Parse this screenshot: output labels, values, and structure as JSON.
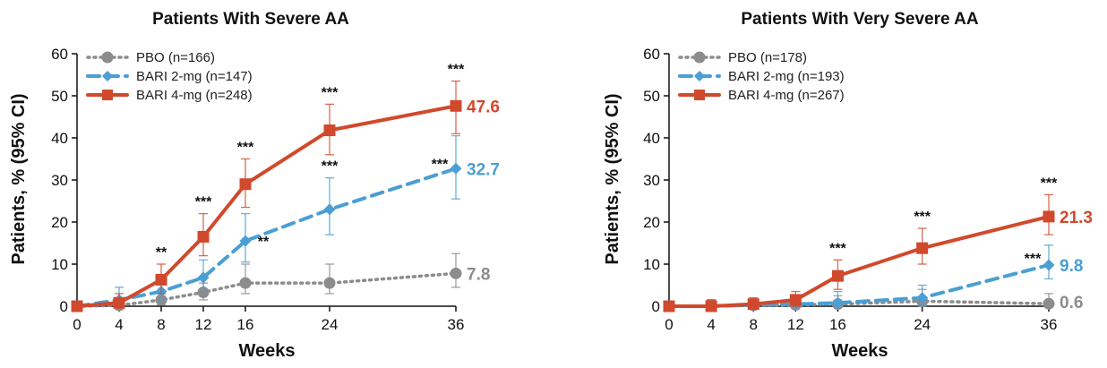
{
  "chart_data": [
    {
      "type": "line",
      "title": "Patients With Severe AA",
      "xlabel": "Weeks",
      "ylabel": "Patients, % (95% CI)",
      "x": [
        0,
        4,
        8,
        12,
        16,
        24,
        36
      ],
      "xticks": [
        "0",
        "4",
        "8",
        "12",
        "16",
        "24",
        "36"
      ],
      "yticks": [
        "0",
        "10",
        "20",
        "30",
        "40",
        "50",
        "60"
      ],
      "ylim": [
        0,
        60
      ],
      "legend_position": "top-left",
      "series": [
        {
          "name": "PBO (n=166)",
          "color": "#8c8c8c",
          "style": "dotted",
          "marker": "circle",
          "values": [
            0,
            0.2,
            1.5,
            3.3,
            5.5,
            5.5,
            7.8
          ],
          "ci_low": [
            0,
            0,
            0.3,
            1.5,
            3.0,
            3.0,
            4.5
          ],
          "ci_high": [
            0,
            1.0,
            3.0,
            5.5,
            10.0,
            10.0,
            12.5
          ],
          "end_label": "7.8"
        },
        {
          "name": "BARI 2-mg (n=147)",
          "color": "#4a9fd4",
          "style": "dashed",
          "marker": "diamond",
          "values": [
            0,
            1.5,
            3.5,
            6.8,
            15.5,
            23.0,
            32.7
          ],
          "ci_low": [
            0,
            0,
            1.5,
            3.5,
            10.5,
            17.0,
            25.5
          ],
          "ci_high": [
            0,
            4.5,
            6.5,
            11.0,
            22.0,
            30.5,
            40.5
          ],
          "end_label": "32.7"
        },
        {
          "name": "BARI 4-mg (n=248)",
          "color": "#d1492c",
          "style": "solid",
          "marker": "square",
          "values": [
            0,
            0.8,
            6.3,
            16.5,
            29.0,
            41.8,
            47.6
          ],
          "ci_low": [
            0,
            0,
            3.0,
            12.0,
            23.5,
            36.0,
            41.0
          ],
          "ci_high": [
            0,
            3.0,
            10.0,
            22.0,
            35.0,
            48.0,
            53.5
          ],
          "end_label": "47.6"
        }
      ],
      "annotations": [
        {
          "x": 8,
          "series": "BARI 4-mg (n=248)",
          "text": "**"
        },
        {
          "x": 12,
          "series": "BARI 4-mg (n=248)",
          "text": "***"
        },
        {
          "x": 16,
          "series": "BARI 4-mg (n=248)",
          "text": "***"
        },
        {
          "x": 16,
          "series": "BARI 2-mg (n=147)",
          "text": "**"
        },
        {
          "x": 24,
          "series": "BARI 4-mg (n=248)",
          "text": "***"
        },
        {
          "x": 24,
          "series": "BARI 2-mg (n=147)",
          "text": "***"
        },
        {
          "x": 36,
          "series": "BARI 4-mg (n=248)",
          "text": "***"
        },
        {
          "x": 36,
          "series": "BARI 2-mg (n=147)",
          "text": "***"
        }
      ]
    },
    {
      "type": "line",
      "title": "Patients With Very Severe AA",
      "xlabel": "Weeks",
      "ylabel": "Patients, % (95% CI)",
      "x": [
        0,
        4,
        8,
        12,
        16,
        24,
        36
      ],
      "xticks": [
        "0",
        "4",
        "8",
        "12",
        "16",
        "24",
        "36"
      ],
      "yticks": [
        "0",
        "10",
        "20",
        "30",
        "40",
        "50",
        "60"
      ],
      "ylim": [
        0,
        60
      ],
      "legend_position": "top-left",
      "series": [
        {
          "name": "PBO (n=178)",
          "color": "#8c8c8c",
          "style": "dotted",
          "marker": "circle",
          "values": [
            0,
            0,
            0.2,
            0.3,
            0.5,
            1.2,
            0.6
          ],
          "ci_low": [
            0,
            0,
            0,
            0,
            0,
            0,
            0
          ],
          "ci_high": [
            0,
            1.5,
            1.5,
            2.5,
            2.5,
            4.0,
            3.0
          ],
          "end_label": "0.6"
        },
        {
          "name": "BARI 2-mg (n=193)",
          "color": "#4a9fd4",
          "style": "dashed",
          "marker": "diamond",
          "values": [
            0,
            0,
            0.3,
            0.5,
            0.8,
            2.0,
            9.8
          ],
          "ci_low": [
            0,
            0,
            0,
            0,
            0,
            0.5,
            6.5
          ],
          "ci_high": [
            0,
            1.5,
            1.5,
            2.5,
            3.5,
            5.0,
            14.5
          ],
          "end_label": "9.8"
        },
        {
          "name": "BARI 4-mg (n=267)",
          "color": "#d1492c",
          "style": "solid",
          "marker": "square",
          "values": [
            0,
            0,
            0.5,
            1.5,
            7.2,
            13.8,
            21.3
          ],
          "ci_low": [
            0,
            0,
            0,
            0,
            4.0,
            10.0,
            17.0
          ],
          "ci_high": [
            0,
            1.5,
            2.0,
            3.5,
            11.0,
            18.5,
            26.5
          ],
          "end_label": "21.3"
        }
      ],
      "annotations": [
        {
          "x": 16,
          "series": "BARI 4-mg (n=267)",
          "text": "***"
        },
        {
          "x": 24,
          "series": "BARI 4-mg (n=267)",
          "text": "***"
        },
        {
          "x": 36,
          "series": "BARI 4-mg (n=267)",
          "text": "***"
        },
        {
          "x": 36,
          "series": "BARI 2-mg (n=193)",
          "text": "***"
        }
      ]
    }
  ]
}
